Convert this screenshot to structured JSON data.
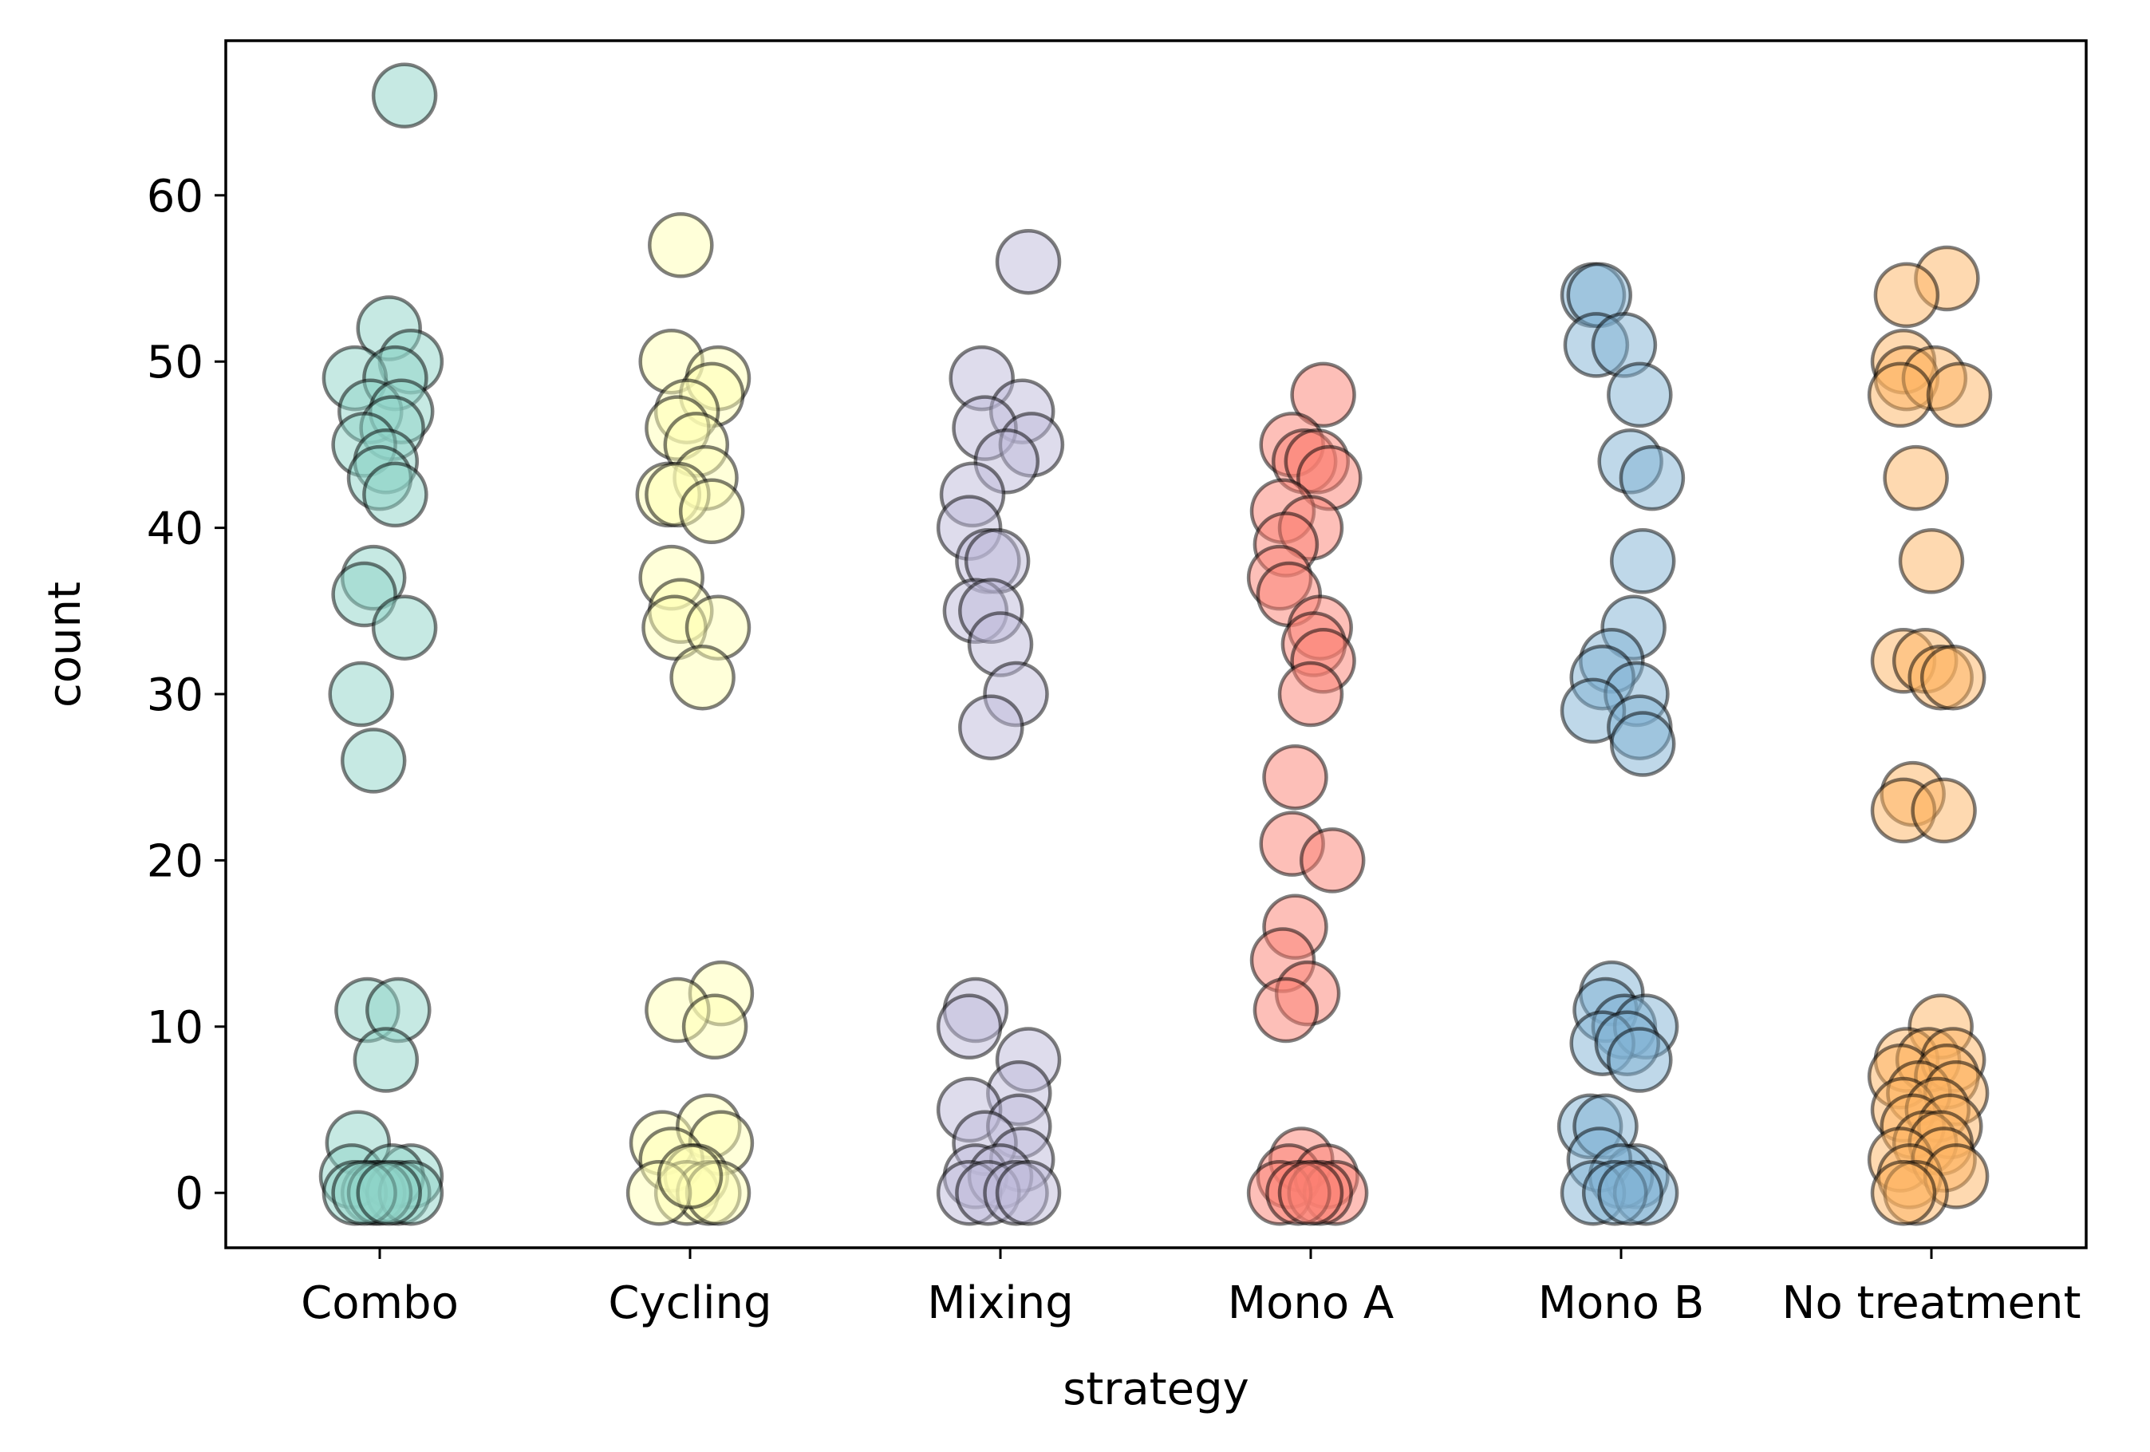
{
  "chart_data": {
    "type": "scatter",
    "title": "",
    "xlabel": "strategy",
    "ylabel": "count",
    "categories": [
      "Combo",
      "Cycling",
      "Mixing",
      "Mono A",
      "Mono B",
      "No treatment"
    ],
    "ylim": [
      -3.3,
      69.3
    ],
    "yticks": [
      0,
      10,
      20,
      30,
      40,
      50,
      60
    ],
    "grid": false,
    "legend": "none",
    "marker_opacity": 0.5,
    "marker_edge_color": "#000000",
    "series": [
      {
        "category": "Combo",
        "color": "#8dd3c7",
        "points": [
          {
            "x": 0.08,
            "y": 66
          },
          {
            "x": 0.03,
            "y": 52
          },
          {
            "x": 0.1,
            "y": 50
          },
          {
            "x": -0.08,
            "y": 49
          },
          {
            "x": 0.05,
            "y": 49
          },
          {
            "x": -0.03,
            "y": 47
          },
          {
            "x": 0.07,
            "y": 47
          },
          {
            "x": 0.04,
            "y": 46
          },
          {
            "x": -0.05,
            "y": 45
          },
          {
            "x": 0.02,
            "y": 44
          },
          {
            "x": 0.0,
            "y": 43
          },
          {
            "x": 0.05,
            "y": 42
          },
          {
            "x": -0.02,
            "y": 37
          },
          {
            "x": -0.05,
            "y": 36
          },
          {
            "x": 0.08,
            "y": 34
          },
          {
            "x": -0.06,
            "y": 30
          },
          {
            "x": -0.02,
            "y": 26
          },
          {
            "x": -0.04,
            "y": 11
          },
          {
            "x": 0.06,
            "y": 11
          },
          {
            "x": 0.02,
            "y": 8
          },
          {
            "x": -0.07,
            "y": 3
          },
          {
            "x": 0.1,
            "y": 1
          },
          {
            "x": -0.09,
            "y": 1
          },
          {
            "x": 0.04,
            "y": 1
          },
          {
            "x": -0.02,
            "y": 0
          },
          {
            "x": 0.06,
            "y": 0
          },
          {
            "x": -0.08,
            "y": 0
          },
          {
            "x": 0.1,
            "y": 0
          },
          {
            "x": 0.0,
            "y": 0
          },
          {
            "x": -0.05,
            "y": 0
          },
          {
            "x": 0.03,
            "y": 0
          }
        ]
      },
      {
        "category": "Cycling",
        "color": "#ffffb3",
        "points": [
          {
            "x": -0.03,
            "y": 57
          },
          {
            "x": -0.06,
            "y": 50
          },
          {
            "x": 0.09,
            "y": 49
          },
          {
            "x": 0.07,
            "y": 48
          },
          {
            "x": -0.01,
            "y": 47
          },
          {
            "x": -0.04,
            "y": 46
          },
          {
            "x": 0.02,
            "y": 45
          },
          {
            "x": 0.05,
            "y": 43
          },
          {
            "x": -0.07,
            "y": 42
          },
          {
            "x": -0.04,
            "y": 42
          },
          {
            "x": 0.07,
            "y": 41
          },
          {
            "x": -0.06,
            "y": 37
          },
          {
            "x": -0.03,
            "y": 35
          },
          {
            "x": -0.05,
            "y": 34
          },
          {
            "x": 0.09,
            "y": 34
          },
          {
            "x": 0.04,
            "y": 31
          },
          {
            "x": 0.1,
            "y": 12
          },
          {
            "x": -0.04,
            "y": 11
          },
          {
            "x": 0.08,
            "y": 10
          },
          {
            "x": -0.09,
            "y": 3
          },
          {
            "x": 0.06,
            "y": 4
          },
          {
            "x": 0.1,
            "y": 3
          },
          {
            "x": -0.06,
            "y": 2
          },
          {
            "x": 0.02,
            "y": 1
          },
          {
            "x": -0.01,
            "y": 0
          },
          {
            "x": 0.06,
            "y": 0
          },
          {
            "x": 0.09,
            "y": 0
          },
          {
            "x": -0.1,
            "y": 0
          },
          {
            "x": 0.0,
            "y": 1
          }
        ]
      },
      {
        "category": "Mixing",
        "color": "#bebada",
        "points": [
          {
            "x": 0.09,
            "y": 56
          },
          {
            "x": -0.06,
            "y": 49
          },
          {
            "x": 0.07,
            "y": 47
          },
          {
            "x": -0.05,
            "y": 46
          },
          {
            "x": 0.1,
            "y": 45
          },
          {
            "x": 0.02,
            "y": 44
          },
          {
            "x": -0.09,
            "y": 42
          },
          {
            "x": -0.1,
            "y": 40
          },
          {
            "x": -0.04,
            "y": 38
          },
          {
            "x": -0.01,
            "y": 38
          },
          {
            "x": -0.08,
            "y": 35
          },
          {
            "x": -0.03,
            "y": 35
          },
          {
            "x": 0.0,
            "y": 33
          },
          {
            "x": 0.05,
            "y": 30
          },
          {
            "x": -0.03,
            "y": 28
          },
          {
            "x": -0.08,
            "y": 11
          },
          {
            "x": -0.1,
            "y": 10
          },
          {
            "x": 0.09,
            "y": 8
          },
          {
            "x": 0.06,
            "y": 6
          },
          {
            "x": -0.1,
            "y": 5
          },
          {
            "x": 0.06,
            "y": 4
          },
          {
            "x": -0.05,
            "y": 3
          },
          {
            "x": 0.07,
            "y": 2
          },
          {
            "x": -0.08,
            "y": 1
          },
          {
            "x": 0.0,
            "y": 1
          },
          {
            "x": -0.1,
            "y": 0
          },
          {
            "x": -0.04,
            "y": 0
          },
          {
            "x": 0.05,
            "y": 0
          },
          {
            "x": 0.09,
            "y": 0
          }
        ]
      },
      {
        "category": "Mono A",
        "color": "#fb8072",
        "points": [
          {
            "x": 0.04,
            "y": 48
          },
          {
            "x": -0.06,
            "y": 45
          },
          {
            "x": -0.02,
            "y": 44
          },
          {
            "x": 0.02,
            "y": 44
          },
          {
            "x": 0.06,
            "y": 43
          },
          {
            "x": -0.09,
            "y": 41
          },
          {
            "x": 0.0,
            "y": 40
          },
          {
            "x": -0.08,
            "y": 39
          },
          {
            "x": -0.1,
            "y": 37
          },
          {
            "x": -0.07,
            "y": 36
          },
          {
            "x": 0.03,
            "y": 34
          },
          {
            "x": 0.01,
            "y": 33
          },
          {
            "x": 0.04,
            "y": 32
          },
          {
            "x": 0.0,
            "y": 30
          },
          {
            "x": -0.05,
            "y": 25
          },
          {
            "x": -0.06,
            "y": 21
          },
          {
            "x": 0.07,
            "y": 20
          },
          {
            "x": -0.05,
            "y": 16
          },
          {
            "x": -0.09,
            "y": 14
          },
          {
            "x": -0.01,
            "y": 12
          },
          {
            "x": -0.08,
            "y": 11
          },
          {
            "x": -0.03,
            "y": 2
          },
          {
            "x": -0.07,
            "y": 1
          },
          {
            "x": 0.05,
            "y": 1
          },
          {
            "x": 0.08,
            "y": 0
          },
          {
            "x": -0.1,
            "y": 0
          },
          {
            "x": 0.03,
            "y": 0
          },
          {
            "x": -0.04,
            "y": 0
          },
          {
            "x": 0.0,
            "y": 0
          }
        ]
      },
      {
        "category": "Mono B",
        "color": "#80b1d3",
        "points": [
          {
            "x": -0.09,
            "y": 54
          },
          {
            "x": -0.07,
            "y": 54
          },
          {
            "x": -0.08,
            "y": 51
          },
          {
            "x": 0.01,
            "y": 51
          },
          {
            "x": 0.06,
            "y": 48
          },
          {
            "x": 0.03,
            "y": 44
          },
          {
            "x": 0.1,
            "y": 43
          },
          {
            "x": 0.07,
            "y": 38
          },
          {
            "x": 0.04,
            "y": 34
          },
          {
            "x": -0.03,
            "y": 32
          },
          {
            "x": -0.06,
            "y": 31
          },
          {
            "x": 0.05,
            "y": 30
          },
          {
            "x": -0.09,
            "y": 29
          },
          {
            "x": 0.06,
            "y": 28
          },
          {
            "x": 0.07,
            "y": 27
          },
          {
            "x": -0.03,
            "y": 12
          },
          {
            "x": -0.05,
            "y": 11
          },
          {
            "x": 0.01,
            "y": 10
          },
          {
            "x": 0.08,
            "y": 10
          },
          {
            "x": -0.06,
            "y": 9
          },
          {
            "x": 0.02,
            "y": 9
          },
          {
            "x": 0.06,
            "y": 8
          },
          {
            "x": -0.1,
            "y": 4
          },
          {
            "x": -0.05,
            "y": 4
          },
          {
            "x": 0.05,
            "y": 1
          },
          {
            "x": -0.07,
            "y": 2
          },
          {
            "x": 0.0,
            "y": 1
          },
          {
            "x": -0.09,
            "y": 0
          },
          {
            "x": 0.08,
            "y": 0
          },
          {
            "x": -0.02,
            "y": 0
          },
          {
            "x": 0.03,
            "y": 0
          }
        ]
      },
      {
        "category": "No treatment",
        "color": "#fdb462",
        "points": [
          {
            "x": 0.05,
            "y": 55
          },
          {
            "x": -0.08,
            "y": 54
          },
          {
            "x": -0.09,
            "y": 50
          },
          {
            "x": -0.08,
            "y": 49
          },
          {
            "x": 0.01,
            "y": 49
          },
          {
            "x": -0.1,
            "y": 48
          },
          {
            "x": 0.09,
            "y": 48
          },
          {
            "x": -0.05,
            "y": 43
          },
          {
            "x": 0.0,
            "y": 38
          },
          {
            "x": -0.09,
            "y": 32
          },
          {
            "x": -0.02,
            "y": 32
          },
          {
            "x": 0.03,
            "y": 31
          },
          {
            "x": 0.07,
            "y": 31
          },
          {
            "x": -0.06,
            "y": 24
          },
          {
            "x": -0.09,
            "y": 23
          },
          {
            "x": 0.04,
            "y": 23
          },
          {
            "x": 0.03,
            "y": 10
          },
          {
            "x": -0.08,
            "y": 8
          },
          {
            "x": -0.01,
            "y": 8
          },
          {
            "x": 0.07,
            "y": 8
          },
          {
            "x": -0.1,
            "y": 7
          },
          {
            "x": 0.05,
            "y": 7
          },
          {
            "x": -0.04,
            "y": 6
          },
          {
            "x": 0.08,
            "y": 6
          },
          {
            "x": -0.09,
            "y": 5
          },
          {
            "x": 0.02,
            "y": 5
          },
          {
            "x": -0.06,
            "y": 4
          },
          {
            "x": 0.06,
            "y": 4
          },
          {
            "x": -0.02,
            "y": 3
          },
          {
            "x": 0.03,
            "y": 3
          },
          {
            "x": -0.1,
            "y": 2
          },
          {
            "x": 0.04,
            "y": 2
          },
          {
            "x": -0.07,
            "y": 1
          },
          {
            "x": 0.08,
            "y": 1
          },
          {
            "x": -0.05,
            "y": 0
          },
          {
            "x": -0.09,
            "y": 0
          }
        ]
      }
    ]
  }
}
